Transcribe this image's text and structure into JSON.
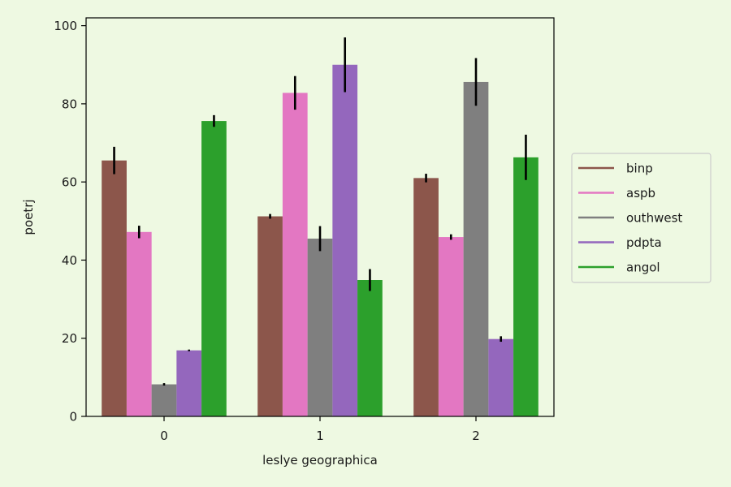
{
  "chart_data": {
    "type": "bar",
    "title": "",
    "xlabel": "leslye geographica",
    "ylabel": "poetrj",
    "categories": [
      "0",
      "1",
      "2"
    ],
    "ylim": [
      0,
      102
    ],
    "yticks": [
      0,
      20,
      40,
      60,
      80,
      100
    ],
    "grid": false,
    "legend_position": "right",
    "background_color": "#eef9e2",
    "plot_background_color": "#eef9e2",
    "series": [
      {
        "name": "binp",
        "color": "#8c564b",
        "values": [
          65.5,
          51.2,
          61.0
        ],
        "errors": [
          3.5,
          0.6,
          1.1
        ]
      },
      {
        "name": "aspb",
        "color": "#e377c2",
        "values": [
          47.2,
          82.8,
          45.9
        ],
        "errors": [
          1.6,
          4.3,
          0.7
        ]
      },
      {
        "name": "outhwest",
        "color": "#7f7f7f",
        "values": [
          8.2,
          45.5,
          85.6
        ],
        "errors": [
          0.3,
          3.2,
          6.1
        ]
      },
      {
        "name": "pdpta",
        "color": "#9467bd",
        "values": [
          16.9,
          90.0,
          19.8
        ],
        "errors": [
          0.2,
          7.0,
          0.7
        ]
      },
      {
        "name": "angol",
        "color": "#2ca02c",
        "values": [
          75.6,
          34.9,
          66.3
        ],
        "errors": [
          1.5,
          2.8,
          5.8
        ]
      }
    ]
  }
}
